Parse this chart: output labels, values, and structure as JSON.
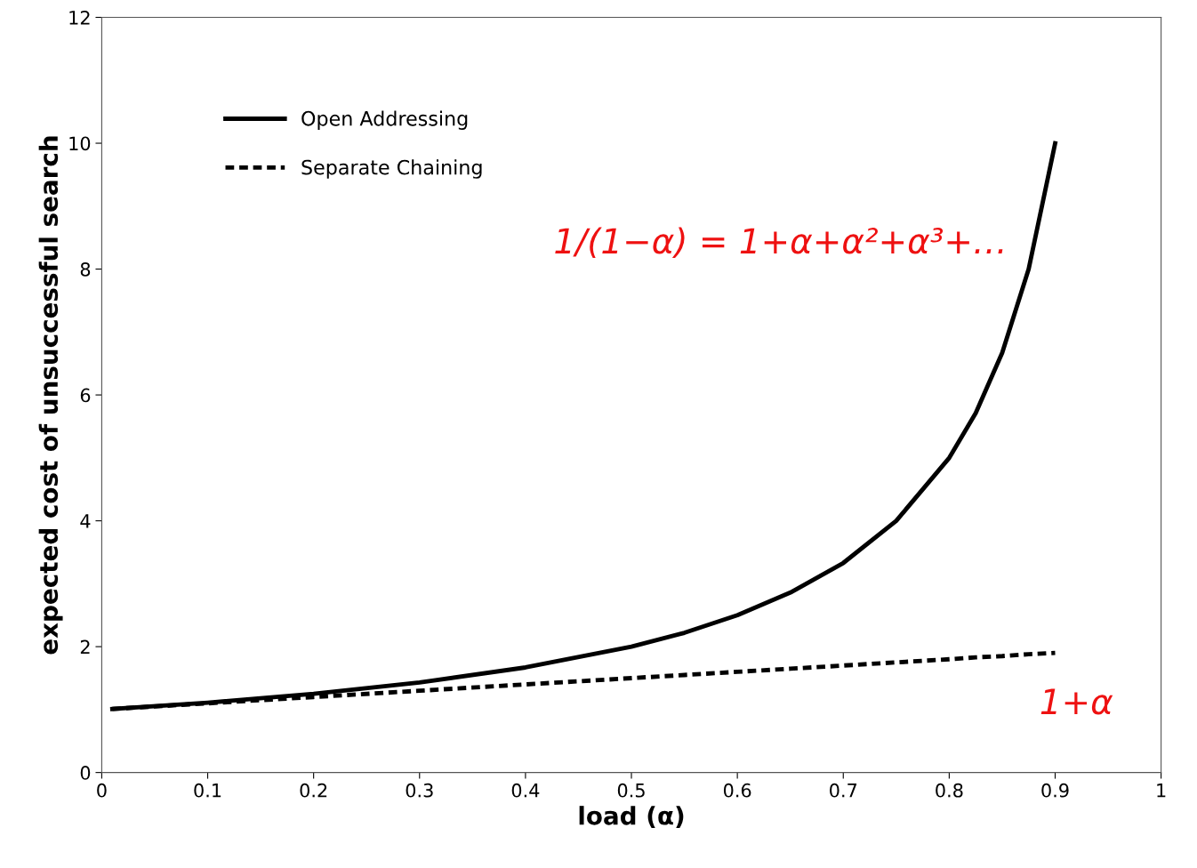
{
  "chart_data": {
    "type": "line",
    "xlabel": "load (α)",
    "ylabel": "expected cost of unsuccessful search",
    "xlim": [
      0,
      1
    ],
    "ylim": [
      0,
      12
    ],
    "xticks": [
      0,
      0.1,
      0.2,
      0.3,
      0.4,
      0.5,
      0.6,
      0.7,
      0.8,
      0.9,
      1
    ],
    "yticks": [
      0,
      2,
      4,
      6,
      8,
      10,
      12
    ],
    "x": [
      0.01,
      0.1,
      0.2,
      0.3,
      0.4,
      0.5,
      0.55,
      0.6,
      0.65,
      0.7,
      0.75,
      0.8,
      0.825,
      0.85,
      0.875,
      0.9
    ],
    "series": [
      {
        "name": "Open Addressing",
        "color": "#000000",
        "line_style": "solid",
        "values": [
          1.01,
          1.11,
          1.25,
          1.43,
          1.67,
          2.0,
          2.22,
          2.5,
          2.86,
          3.33,
          4.0,
          5.0,
          5.71,
          6.67,
          8.0,
          10.0
        ]
      },
      {
        "name": "Separate Chaining",
        "color": "#000000",
        "line_style": "dashed",
        "values": [
          1.01,
          1.1,
          1.2,
          1.3,
          1.4,
          1.5,
          1.55,
          1.6,
          1.65,
          1.7,
          1.75,
          1.8,
          1.83,
          1.85,
          1.88,
          1.9
        ]
      }
    ],
    "annotations": [
      "1/(1−α) = 1+α+α²+α³+…",
      "1+α"
    ],
    "legend": "top left",
    "grid": false,
    "marker": "none"
  }
}
